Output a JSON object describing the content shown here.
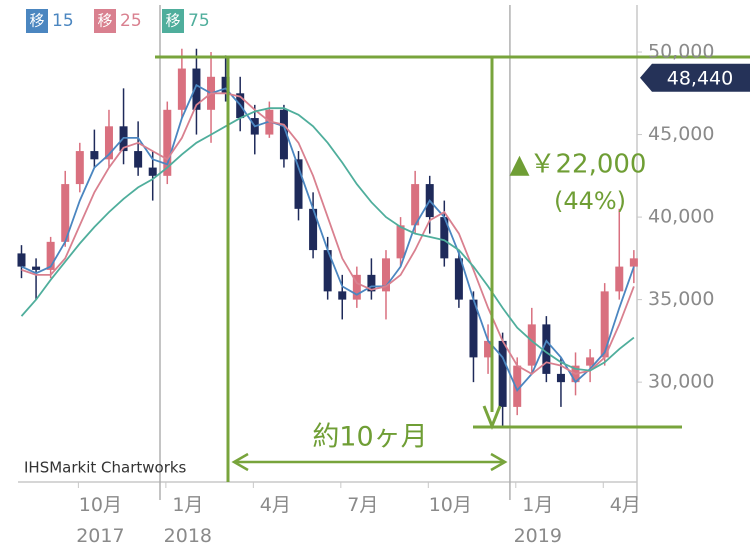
{
  "chart_data": {
    "type": "candlestick",
    "categories": [
      null,
      null,
      null,
      null,
      null,
      "10月\n2017",
      null,
      null,
      null,
      null,
      null,
      "1月\n2018",
      null,
      null,
      null,
      null,
      null,
      "4月",
      null,
      null,
      null,
      null,
      null,
      "7月",
      null,
      null,
      null,
      null,
      null,
      "10月",
      null,
      null,
      null,
      null,
      null,
      "1月\n2019",
      null,
      null,
      null,
      null,
      null,
      "4月",
      null
    ],
    "candles": [
      [
        37800,
        38300,
        36300,
        37000
      ],
      [
        37000,
        37500,
        35000,
        36800
      ],
      [
        36800,
        38800,
        36300,
        38500
      ],
      [
        38500,
        42800,
        38200,
        42000
      ],
      [
        42000,
        44500,
        41500,
        44000
      ],
      [
        44000,
        45300,
        43000,
        43500
      ],
      [
        43500,
        46500,
        43000,
        45500
      ],
      [
        45500,
        47800,
        43200,
        44000
      ],
      [
        44000,
        45800,
        42500,
        43000
      ],
      [
        43000,
        44000,
        41000,
        42500
      ],
      [
        42500,
        47000,
        42000,
        46500
      ],
      [
        46500,
        50200,
        46000,
        49000
      ],
      [
        49000,
        50200,
        45000,
        46500
      ],
      [
        46500,
        50000,
        44500,
        48500
      ],
      [
        48500,
        49800,
        47000,
        47500
      ],
      [
        47500,
        48500,
        45200,
        46000
      ],
      [
        46000,
        46800,
        43800,
        45000
      ],
      [
        45000,
        47000,
        44800,
        46500
      ],
      [
        46500,
        46800,
        43000,
        43500
      ],
      [
        43500,
        44000,
        39800,
        40500
      ],
      [
        40500,
        41500,
        37500,
        38000
      ],
      [
        38000,
        38800,
        35000,
        35500
      ],
      [
        35500,
        36500,
        33800,
        35000
      ],
      [
        35000,
        37000,
        34500,
        36500
      ],
      [
        36500,
        37500,
        35000,
        35500
      ],
      [
        35500,
        38000,
        33800,
        37500
      ],
      [
        37500,
        40000,
        37000,
        39500
      ],
      [
        39500,
        42800,
        39000,
        42000
      ],
      [
        42000,
        42500,
        39000,
        40000
      ],
      [
        40000,
        41000,
        37000,
        37500
      ],
      [
        37500,
        38000,
        34500,
        35000
      ],
      [
        35000,
        35500,
        30000,
        31500
      ],
      [
        31500,
        33500,
        30500,
        32500
      ],
      [
        32500,
        33000,
        27200,
        28500
      ],
      [
        28500,
        31500,
        28000,
        31000
      ],
      [
        31000,
        34500,
        30500,
        33500
      ],
      [
        33500,
        34000,
        30000,
        30500
      ],
      [
        30500,
        31500,
        28500,
        30000
      ],
      [
        30000,
        31800,
        29200,
        31000
      ],
      [
        31000,
        32000,
        30000,
        31500
      ],
      [
        31500,
        36000,
        31000,
        35500
      ],
      [
        35500,
        40500,
        35000,
        37000
      ],
      [
        37000,
        38000,
        36000,
        37500
      ]
    ],
    "up_color": "#d9707f",
    "down_color": "#1e2a5a",
    "legend_prefix": "移",
    "series": [
      {
        "name": "15",
        "color": "#4b86c0",
        "values": [
          37000,
          36600,
          37000,
          38500,
          41000,
          43000,
          43800,
          44800,
          44800,
          43500,
          43200,
          46000,
          48000,
          47500,
          47800,
          46800,
          45500,
          45800,
          45500,
          43000,
          40500,
          38000,
          35800,
          35300,
          35800,
          35800,
          37000,
          39500,
          41000,
          40000,
          37800,
          35000,
          32500,
          31500,
          29500,
          30500,
          32500,
          31500,
          30000,
          30800,
          31800,
          34500,
          37000
        ]
      },
      {
        "name": "25",
        "color": "#d9808f",
        "values": [
          36800,
          36500,
          36500,
          37500,
          39500,
          41500,
          43000,
          44200,
          44500,
          44000,
          43500,
          44800,
          46800,
          47500,
          47500,
          47300,
          46500,
          45800,
          45600,
          44500,
          42500,
          40000,
          37500,
          36000,
          35600,
          35800,
          36500,
          38000,
          39800,
          40300,
          39000,
          36800,
          34500,
          32500,
          31000,
          30500,
          31200,
          31000,
          30500,
          30700,
          31500,
          33500,
          35800
        ]
      },
      {
        "name": "75",
        "color": "#4fae9c",
        "values": [
          34000,
          35000,
          36200,
          37300,
          38400,
          39400,
          40300,
          41100,
          41800,
          42300,
          43000,
          43800,
          44500,
          45000,
          45500,
          46000,
          46400,
          46600,
          46600,
          46200,
          45500,
          44500,
          43300,
          42000,
          40900,
          40000,
          39400,
          39000,
          38800,
          38600,
          38000,
          37000,
          35800,
          34500,
          33300,
          32500,
          31800,
          31200,
          30800,
          30700,
          31200,
          32000,
          32700
        ]
      }
    ],
    "ylim": [
      23950,
      52850
    ],
    "yticks": [
      {
        "value": 30000,
        "label": "30,000"
      },
      {
        "value": 35000,
        "label": "35,000"
      },
      {
        "value": 40000,
        "label": "40,000"
      },
      {
        "value": 45000,
        "label": "45,000"
      },
      {
        "value": 50000,
        "label": "50,000"
      }
    ],
    "grid": false,
    "last_price": {
      "value": 48440,
      "label": "48,440"
    },
    "annotations": {
      "change": "▲￥22,000",
      "percent": "(44%)",
      "duration": "約10ヶ月"
    },
    "source": "IHSMarkit Chartworks"
  }
}
